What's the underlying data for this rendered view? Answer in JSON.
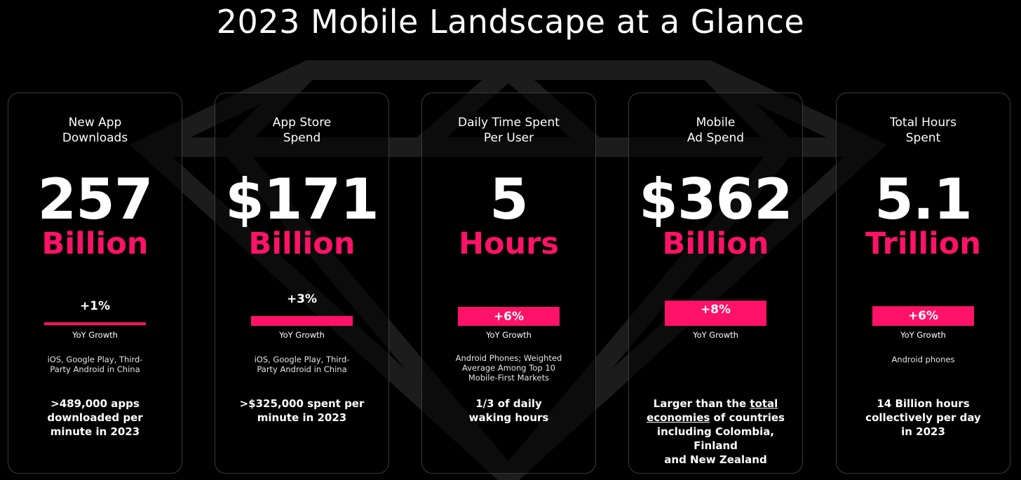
{
  "page": {
    "title": "2023 Mobile Landscape at a Glance"
  },
  "colors": {
    "accent": "#ff1268",
    "background": "#000000",
    "card_border": "#3a3a3a"
  },
  "cards": [
    {
      "title": "New App\nDownloads",
      "number": "257",
      "unit": "Billion",
      "growth": "+1%",
      "growth_label": "YoY Growth",
      "note": "iOS, Google Play, Third-\nParty Android in China",
      "fact": ">489,000 apps\ndownloaded per\nminute in 2023"
    },
    {
      "title": "App Store\nSpend",
      "number": "$171",
      "unit": "Billion",
      "growth": "+3%",
      "growth_label": "YoY Growth",
      "note": "iOS, Google Play, Third-\nParty Android in China",
      "fact": ">$325,000 spent per\nminute in 2023"
    },
    {
      "title": "Daily Time Spent\nPer User",
      "number": "5",
      "unit": "Hours",
      "growth": "+6%",
      "growth_label": "YoY Growth",
      "note": "Android Phones; Weighted\nAverage Among Top 10\nMobile-First  Markets",
      "fact": "1/3 of daily\nwaking hours"
    },
    {
      "title": "Mobile\nAd Spend",
      "number": "$362",
      "unit": "Billion",
      "growth": "+8%",
      "growth_label": "YoY Growth",
      "note": "",
      "fact_pre": "Larger than the ",
      "fact_link": "total\neconomies",
      "fact_post": " of countries\nincluding Colombia, Finland\nand New Zealand"
    },
    {
      "title": "Total Hours\nSpent",
      "number": "5.1",
      "unit": "Trillion",
      "growth": "+6%",
      "growth_label": "YoY Growth",
      "note": "Android phones",
      "fact": "14 Billion hours\ncollectively per day\nin 2023"
    }
  ]
}
